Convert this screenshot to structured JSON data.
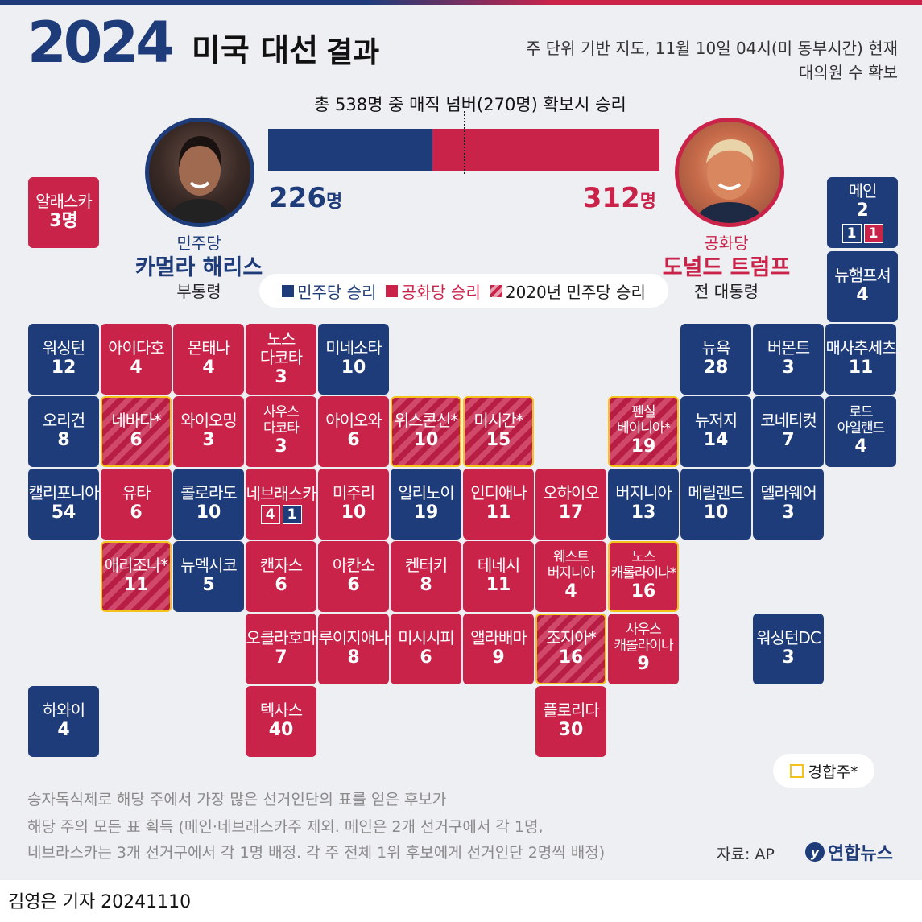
{
  "header": {
    "year": "2024",
    "title_main": "미국 대선",
    "title_sub": "결과",
    "note_line1": "주 단위 기반 지도, 11월 10일 04시(미 동부시간) 현재",
    "note_line2": "대의원 수 확보"
  },
  "tally": {
    "magic_text": "총 538명 중 매직 넘버(270명) 확보시 승리",
    "total": 538,
    "magic_number": 270,
    "dem_value": "226",
    "rep_value": "312",
    "unit": "명",
    "dem_votes": 226,
    "rep_votes": 312
  },
  "candidates": {
    "harris": {
      "party": "민주당",
      "name": "카멀라 해리스",
      "role": "부통령",
      "photo": "harris-portrait"
    },
    "trump": {
      "party": "공화당",
      "name": "도널드 트럼프",
      "role": "전 대통령",
      "photo": "trump-portrait"
    }
  },
  "legend": {
    "dem": "민주당 승리",
    "rep": "공화당 승리",
    "flip": "2020년 민주당 승리"
  },
  "colors": {
    "dem": "#1f3c7a",
    "rep": "#c9234a",
    "swing": "#f3c21b"
  },
  "states": [
    {
      "name": "알래스카",
      "votes": "3명",
      "winner": "R"
    },
    {
      "name": "메인",
      "votes": "2",
      "winner": "D",
      "split": [
        "1",
        "1"
      ]
    },
    {
      "name": "뉴햄프셔",
      "votes": "4",
      "winner": "D"
    },
    {
      "name": "워싱턴",
      "votes": "12",
      "winner": "D"
    },
    {
      "name": "아이다호",
      "votes": "4",
      "winner": "R"
    },
    {
      "name": "몬태나",
      "votes": "4",
      "winner": "R"
    },
    {
      "name": "노스\n다코타",
      "votes": "3",
      "winner": "R"
    },
    {
      "name": "미네소타",
      "votes": "10",
      "winner": "D"
    },
    {
      "name": "뉴욕",
      "votes": "28",
      "winner": "D"
    },
    {
      "name": "버몬트",
      "votes": "3",
      "winner": "D"
    },
    {
      "name": "매사추세츠",
      "votes": "11",
      "winner": "D"
    },
    {
      "name": "오리건",
      "votes": "8",
      "winner": "D"
    },
    {
      "name": "네바다*",
      "votes": "6",
      "winner": "R",
      "flip": true,
      "swing": true
    },
    {
      "name": "와이오밍",
      "votes": "3",
      "winner": "R"
    },
    {
      "name": "사우스\n다코타",
      "votes": "3",
      "winner": "R"
    },
    {
      "name": "아이오와",
      "votes": "6",
      "winner": "R"
    },
    {
      "name": "위스콘신*",
      "votes": "10",
      "winner": "R",
      "flip": true,
      "swing": true
    },
    {
      "name": "미시간*",
      "votes": "15",
      "winner": "R",
      "flip": true,
      "swing": true
    },
    {
      "name": "펜실\n베이니아*",
      "votes": "19",
      "winner": "R",
      "flip": true,
      "swing": true
    },
    {
      "name": "뉴저지",
      "votes": "14",
      "winner": "D"
    },
    {
      "name": "코네티컷",
      "votes": "7",
      "winner": "D"
    },
    {
      "name": "로드\n아일랜드",
      "votes": "4",
      "winner": "D"
    },
    {
      "name": "캘리포니아",
      "votes": "54",
      "winner": "D"
    },
    {
      "name": "유타",
      "votes": "6",
      "winner": "R"
    },
    {
      "name": "콜로라도",
      "votes": "10",
      "winner": "D"
    },
    {
      "name": "네브래스카",
      "votes": "",
      "winner": "R",
      "split": [
        "4",
        "1"
      ]
    },
    {
      "name": "미주리",
      "votes": "10",
      "winner": "R"
    },
    {
      "name": "일리노이",
      "votes": "19",
      "winner": "D"
    },
    {
      "name": "인디애나",
      "votes": "11",
      "winner": "R"
    },
    {
      "name": "오하이오",
      "votes": "17",
      "winner": "R"
    },
    {
      "name": "버지니아",
      "votes": "13",
      "winner": "D"
    },
    {
      "name": "메릴랜드",
      "votes": "10",
      "winner": "D"
    },
    {
      "name": "델라웨어",
      "votes": "3",
      "winner": "D"
    },
    {
      "name": "애리조나*",
      "votes": "11",
      "winner": "R",
      "flip": true,
      "swing": true
    },
    {
      "name": "뉴멕시코",
      "votes": "5",
      "winner": "D"
    },
    {
      "name": "캔자스",
      "votes": "6",
      "winner": "R"
    },
    {
      "name": "아칸소",
      "votes": "6",
      "winner": "R"
    },
    {
      "name": "켄터키",
      "votes": "8",
      "winner": "R"
    },
    {
      "name": "테네시",
      "votes": "11",
      "winner": "R"
    },
    {
      "name": "웨스트\n버지니아",
      "votes": "4",
      "winner": "R"
    },
    {
      "name": "노스\n캐롤라이나*",
      "votes": "16",
      "winner": "R",
      "swing": true
    },
    {
      "name": "오클라호마",
      "votes": "7",
      "winner": "R"
    },
    {
      "name": "루이지애나",
      "votes": "8",
      "winner": "R"
    },
    {
      "name": "미시시피",
      "votes": "6",
      "winner": "R"
    },
    {
      "name": "앨라배마",
      "votes": "9",
      "winner": "R"
    },
    {
      "name": "조지아*",
      "votes": "16",
      "winner": "R",
      "flip": true,
      "swing": true
    },
    {
      "name": "사우스\n캐롤라이나",
      "votes": "9",
      "winner": "R"
    },
    {
      "name": "워싱턴DC",
      "votes": "3",
      "winner": "D"
    },
    {
      "name": "하와이",
      "votes": "4",
      "winner": "D"
    },
    {
      "name": "텍사스",
      "votes": "40",
      "winner": "R"
    },
    {
      "name": "플로리다",
      "votes": "30",
      "winner": "R"
    }
  ],
  "swing_key": "경합주*",
  "footnotes": {
    "line1": "승자독식제로 해당 주에서 가장 많은 선거인단의 표를 얻은 후보가",
    "line2": "해당 주의 모든 표 획득 (메인·네브래스카주 제외. 메인은 2개 선거구에서 각 1명,",
    "line3": "네브라스카는 3개 선거구에서 각 1명 배정. 각 주 전체 1위 후보에게 선거인단 2명씩 배정)"
  },
  "source": "자료: AP",
  "logo": "연합뉴스",
  "byline": "김영은 기자  20241110"
}
